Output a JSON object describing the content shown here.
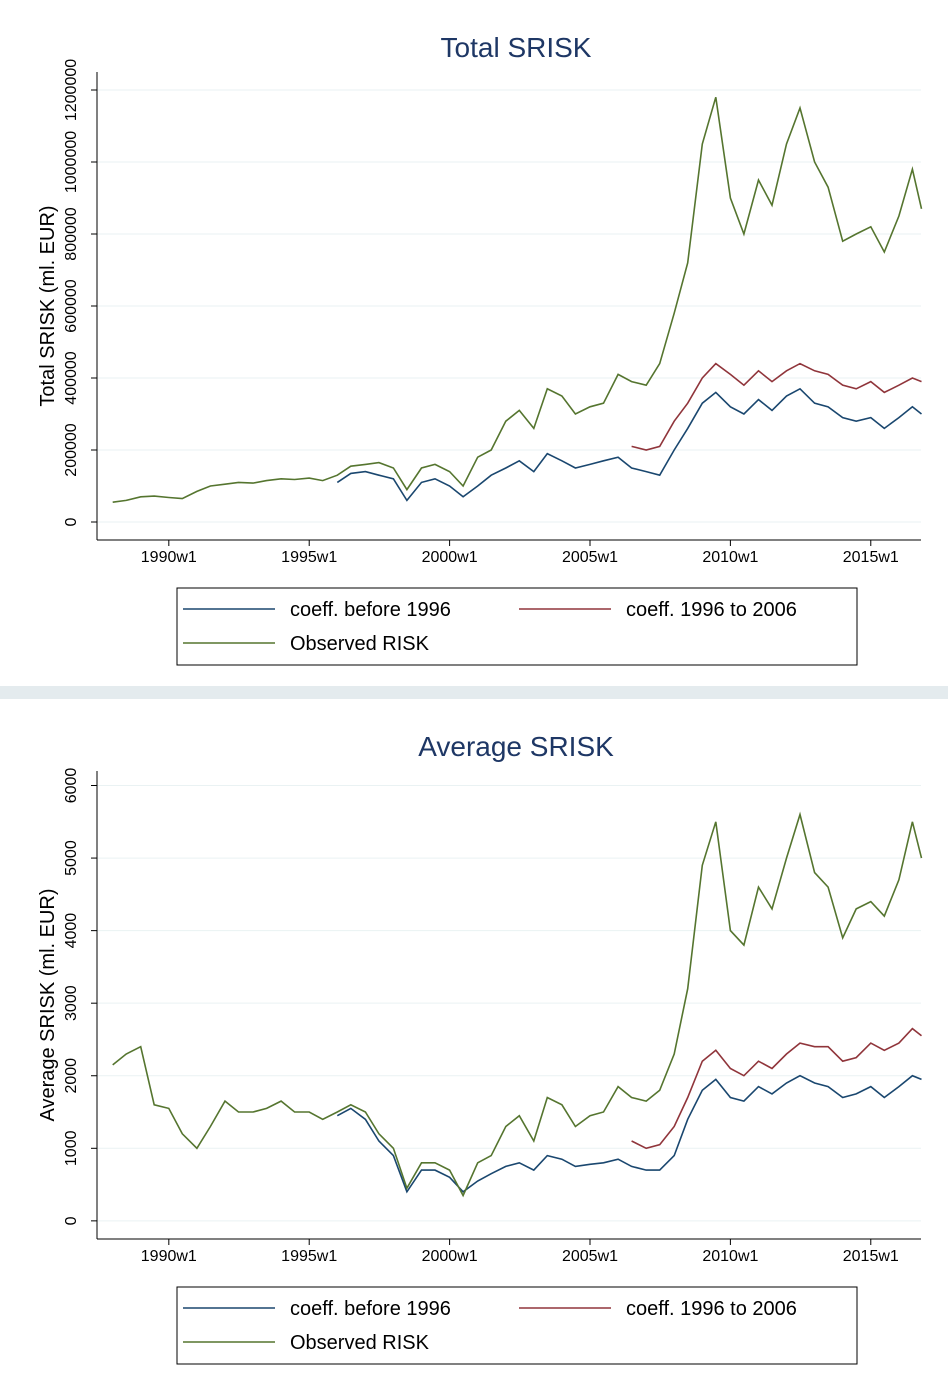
{
  "chart_data": [
    {
      "type": "line",
      "title": "Total SRISK",
      "y_label": "Total SRISK (ml. EUR)",
      "x": [
        "1988w1",
        "1988w26",
        "1989w1",
        "1989w26",
        "1990w1",
        "1990w26",
        "1991w1",
        "1991w26",
        "1992w1",
        "1992w26",
        "1993w1",
        "1993w26",
        "1994w1",
        "1994w26",
        "1995w1",
        "1995w26",
        "1996w1",
        "1996w26",
        "1997w1",
        "1997w26",
        "1998w1",
        "1998w26",
        "1999w1",
        "1999w26",
        "2000w1",
        "2000w26",
        "2001w1",
        "2001w26",
        "2002w1",
        "2002w26",
        "2003w1",
        "2003w26",
        "2004w1",
        "2004w26",
        "2005w1",
        "2005w26",
        "2006w1",
        "2006w26",
        "2007w1",
        "2007w26",
        "2008w1",
        "2008w26",
        "2009w1",
        "2009w26",
        "2010w1",
        "2010w26",
        "2011w1",
        "2011w26",
        "2012w1",
        "2012w26",
        "2013w1",
        "2013w26",
        "2014w1",
        "2014w26",
        "2015w1",
        "2015w26",
        "2016w1",
        "2016w26",
        "2016w43"
      ],
      "xlim": [
        "1987w24",
        "2016w42"
      ],
      "xticks": [
        "1990w1",
        "1995w1",
        "2000w1",
        "2005w1",
        "2010w1",
        "2015w1"
      ],
      "ylim": [
        -50000,
        1250000
      ],
      "yticks": [
        0,
        200000,
        400000,
        600000,
        800000,
        1000000,
        1200000
      ],
      "grid": true,
      "legend": "bottom",
      "series": [
        {
          "name": "coeff. before 1996",
          "color": "#1a476f",
          "values": [
            null,
            null,
            null,
            null,
            null,
            null,
            null,
            null,
            null,
            null,
            null,
            null,
            null,
            null,
            null,
            null,
            110000,
            135000,
            140000,
            130000,
            120000,
            60000,
            110000,
            120000,
            100000,
            70000,
            100000,
            130000,
            150000,
            170000,
            140000,
            190000,
            170000,
            150000,
            160000,
            170000,
            180000,
            150000,
            140000,
            130000,
            200000,
            260000,
            330000,
            360000,
            320000,
            300000,
            340000,
            310000,
            350000,
            370000,
            330000,
            320000,
            290000,
            280000,
            290000,
            260000,
            290000,
            320000,
            300000
          ]
        },
        {
          "name": "coeff. 1996 to 2006",
          "color": "#90353b",
          "values": [
            null,
            null,
            null,
            null,
            null,
            null,
            null,
            null,
            null,
            null,
            null,
            null,
            null,
            null,
            null,
            null,
            null,
            null,
            null,
            null,
            null,
            null,
            null,
            null,
            null,
            null,
            null,
            null,
            null,
            null,
            null,
            null,
            null,
            null,
            null,
            null,
            null,
            210000,
            200000,
            210000,
            280000,
            330000,
            400000,
            440000,
            410000,
            380000,
            420000,
            390000,
            420000,
            440000,
            420000,
            410000,
            380000,
            370000,
            390000,
            360000,
            380000,
            400000,
            390000
          ]
        },
        {
          "name": "Observed RISK",
          "color": "#55752f",
          "values": [
            55000,
            60000,
            70000,
            72000,
            68000,
            65000,
            85000,
            100000,
            105000,
            110000,
            108000,
            115000,
            120000,
            118000,
            122000,
            115000,
            130000,
            155000,
            160000,
            165000,
            150000,
            90000,
            150000,
            160000,
            140000,
            100000,
            180000,
            200000,
            280000,
            310000,
            260000,
            370000,
            350000,
            300000,
            320000,
            330000,
            410000,
            390000,
            380000,
            440000,
            580000,
            720000,
            1050000,
            1180000,
            900000,
            800000,
            950000,
            880000,
            1050000,
            1150000,
            1000000,
            930000,
            780000,
            800000,
            820000,
            750000,
            850000,
            980000,
            870000
          ]
        }
      ]
    },
    {
      "type": "line",
      "title": "Average SRISK",
      "y_label": "Average SRISK (ml. EUR)",
      "x": [
        "1988w1",
        "1988w26",
        "1989w1",
        "1989w26",
        "1990w1",
        "1990w26",
        "1991w1",
        "1991w26",
        "1992w1",
        "1992w26",
        "1993w1",
        "1993w26",
        "1994w1",
        "1994w26",
        "1995w1",
        "1995w26",
        "1996w1",
        "1996w26",
        "1997w1",
        "1997w26",
        "1998w1",
        "1998w26",
        "1999w1",
        "1999w26",
        "2000w1",
        "2000w26",
        "2001w1",
        "2001w26",
        "2002w1",
        "2002w26",
        "2003w1",
        "2003w26",
        "2004w1",
        "2004w26",
        "2005w1",
        "2005w26",
        "2006w1",
        "2006w26",
        "2007w1",
        "2007w26",
        "2008w1",
        "2008w26",
        "2009w1",
        "2009w26",
        "2010w1",
        "2010w26",
        "2011w1",
        "2011w26",
        "2012w1",
        "2012w26",
        "2013w1",
        "2013w26",
        "2014w1",
        "2014w26",
        "2015w1",
        "2015w26",
        "2016w1",
        "2016w26",
        "2016w43"
      ],
      "xlim": [
        "1987w24",
        "2016w42"
      ],
      "xticks": [
        "1990w1",
        "1995w1",
        "2000w1",
        "2005w1",
        "2010w1",
        "2015w1"
      ],
      "ylim": [
        -250,
        6200
      ],
      "yticks": [
        0,
        1000,
        2000,
        3000,
        4000,
        5000,
        6000
      ],
      "grid": true,
      "legend": "bottom",
      "series": [
        {
          "name": "coeff. before 1996",
          "color": "#1a476f",
          "values": [
            null,
            null,
            null,
            null,
            null,
            null,
            null,
            null,
            null,
            null,
            null,
            null,
            null,
            null,
            null,
            null,
            1450,
            1550,
            1400,
            1100,
            900,
            400,
            700,
            700,
            600,
            400,
            550,
            650,
            750,
            800,
            700,
            900,
            850,
            750,
            780,
            800,
            850,
            750,
            700,
            700,
            900,
            1400,
            1800,
            1950,
            1700,
            1650,
            1850,
            1750,
            1900,
            2000,
            1900,
            1850,
            1700,
            1750,
            1850,
            1700,
            1850,
            2000,
            1950
          ]
        },
        {
          "name": "coeff. 1996 to 2006",
          "color": "#90353b",
          "values": [
            null,
            null,
            null,
            null,
            null,
            null,
            null,
            null,
            null,
            null,
            null,
            null,
            null,
            null,
            null,
            null,
            null,
            null,
            null,
            null,
            null,
            null,
            null,
            null,
            null,
            null,
            null,
            null,
            null,
            null,
            null,
            null,
            null,
            null,
            null,
            null,
            null,
            1100,
            1000,
            1050,
            1300,
            1700,
            2200,
            2350,
            2100,
            2000,
            2200,
            2100,
            2300,
            2450,
            2400,
            2400,
            2200,
            2250,
            2450,
            2350,
            2450,
            2650,
            2550
          ]
        },
        {
          "name": "Observed RISK",
          "color": "#55752f",
          "values": [
            2150,
            2300,
            2400,
            1600,
            1550,
            1200,
            1000,
            1300,
            1650,
            1500,
            1500,
            1550,
            1650,
            1500,
            1500,
            1400,
            1500,
            1600,
            1500,
            1200,
            1000,
            450,
            800,
            800,
            700,
            350,
            800,
            900,
            1300,
            1450,
            1100,
            1700,
            1600,
            1300,
            1450,
            1500,
            1850,
            1700,
            1650,
            1800,
            2300,
            3200,
            4900,
            5500,
            4000,
            3800,
            4600,
            4300,
            5000,
            5600,
            4800,
            4600,
            3900,
            4300,
            4400,
            4200,
            4700,
            5500,
            5000
          ]
        }
      ]
    }
  ]
}
